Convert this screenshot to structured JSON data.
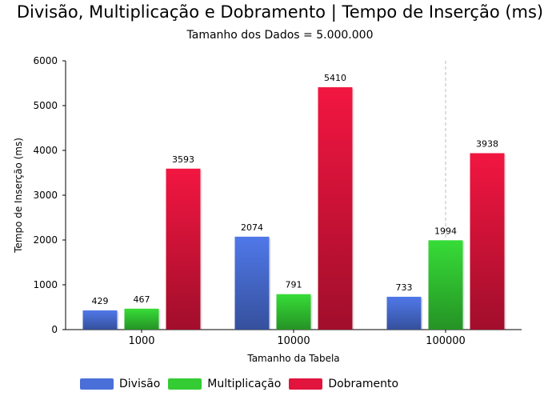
{
  "chart_data": {
    "type": "bar",
    "title": "Divisão, Multiplicação e Dobramento | Tempo de Inserção (ms)",
    "subtitle": "Tamanho dos Dados = 5.000.000",
    "xlabel": "Tamanho da Tabela",
    "ylabel": "Tempo de Inserção (ms)",
    "categories": [
      "1000",
      "10000",
      "100000"
    ],
    "series": [
      {
        "name": "Divisão",
        "values": [
          429,
          2074,
          733
        ],
        "color": "#4a6fd8"
      },
      {
        "name": "Multiplicação",
        "values": [
          467,
          791,
          1994
        ],
        "color": "#33cc33"
      },
      {
        "name": "Dobramento",
        "values": [
          3593,
          5410,
          3938
        ],
        "color": "#e0143c"
      }
    ],
    "ylim": [
      0,
      6000
    ],
    "yticks": [
      0,
      1000,
      2000,
      3000,
      4000,
      5000,
      6000
    ],
    "legend_position": "bottom-left"
  }
}
